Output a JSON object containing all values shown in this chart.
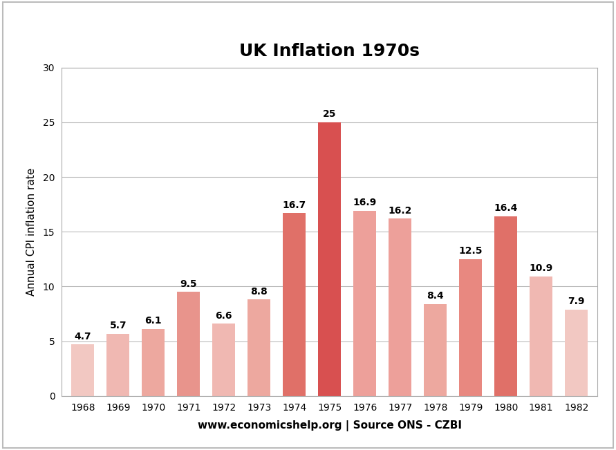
{
  "title": "UK Inflation 1970s",
  "xlabel": "www.economicshelp.org | Source ONS - CZBI",
  "ylabel": "Annual CPI inflation rate",
  "categories": [
    "1968",
    "1969",
    "1970",
    "1971",
    "1972",
    "1973",
    "1974",
    "1975",
    "1976",
    "1977",
    "1978",
    "1979",
    "1980",
    "1981",
    "1982"
  ],
  "values": [
    4.7,
    5.7,
    6.1,
    9.5,
    6.6,
    8.8,
    16.7,
    25.0,
    16.9,
    16.2,
    8.4,
    12.5,
    16.4,
    10.9,
    7.9
  ],
  "bar_colors": [
    "#F2C8C2",
    "#F0B8B2",
    "#EDA89F",
    "#E8948C",
    "#F0B8B2",
    "#EDA89F",
    "#E07068",
    "#D85050",
    "#EDA09A",
    "#EDA09A",
    "#EDA89F",
    "#E88880",
    "#E07068",
    "#F0B8B2",
    "#F2C8C2"
  ],
  "ylim": [
    0,
    30
  ],
  "yticks": [
    0,
    5,
    10,
    15,
    20,
    25,
    30
  ],
  "label_fontsize": 10,
  "title_fontsize": 18,
  "axis_label_fontsize": 11,
  "tick_fontsize": 10,
  "background_color": "#FFFFFF",
  "grid_color": "#BBBBBB",
  "border_color": "#AAAAAA",
  "outer_border_color": "#BBBBBB"
}
